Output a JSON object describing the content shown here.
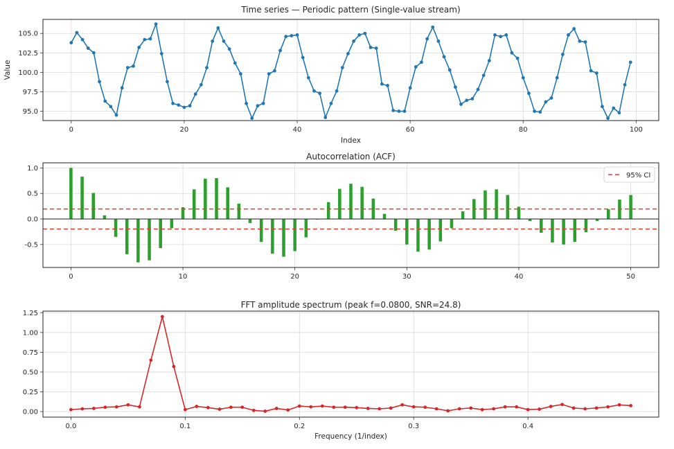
{
  "chart_data": [
    {
      "type": "line",
      "title": "Time series — Periodic pattern (Single-value stream)",
      "xlabel": "Index",
      "ylabel": "Value",
      "xlim": [
        -5,
        104
      ],
      "ylim": [
        93.8,
        106.8
      ],
      "xticks": [
        0,
        20,
        40,
        60,
        80,
        100
      ],
      "yticks": [
        95.0,
        97.5,
        100.0,
        102.5,
        105.0
      ],
      "ytick_labels": [
        "95.0",
        "97.5",
        "100.0",
        "102.5",
        "105.0"
      ],
      "grid": true,
      "color": "#1f77b4",
      "series": [
        {
          "values": [
            103.8,
            105.1,
            104.2,
            103.1,
            102.5,
            98.8,
            96.3,
            95.6,
            94.5,
            98.0,
            100.6,
            100.8,
            103.2,
            104.2,
            104.3,
            106.2,
            102.4,
            98.8,
            96.0,
            95.8,
            95.5,
            95.7,
            97.2,
            98.4,
            100.6,
            104.0,
            105.7,
            104.0,
            103.0,
            101.2,
            99.8,
            96.0,
            94.1,
            95.7,
            96.0,
            99.8,
            100.2,
            102.8,
            104.6,
            104.7,
            104.8,
            101.9,
            99.3,
            97.6,
            97.3,
            94.2,
            96.0,
            97.6,
            100.6,
            102.4,
            104.0,
            104.8,
            105.0,
            103.2,
            103.1,
            98.5,
            98.3,
            95.1,
            95.0,
            95.0,
            98.0,
            100.7,
            101.3,
            104.3,
            105.8,
            104.0,
            102.0,
            100.3,
            98.1,
            95.9,
            96.4,
            96.6,
            97.8,
            99.6,
            101.5,
            104.8,
            104.6,
            104.8,
            102.5,
            101.8,
            99.3,
            97.3,
            95.0,
            94.9,
            96.2,
            96.7,
            99.3,
            102.3,
            104.8,
            105.6,
            104.0,
            103.9,
            100.2,
            99.9,
            95.6,
            94.1,
            95.4,
            94.8,
            98.4,
            101.3
          ]
        }
      ]
    },
    {
      "type": "bar",
      "title": "Autocorrelation (ACF)",
      "xlim": [
        -2.5,
        52.5
      ],
      "ylim": [
        -0.95,
        1.1
      ],
      "xticks": [
        0,
        10,
        20,
        30,
        40,
        50
      ],
      "yticks": [
        -0.5,
        0.0,
        0.5,
        1.0
      ],
      "ytick_labels": [
        "-0.5",
        "0.0",
        "0.5",
        "1.0"
      ],
      "grid": true,
      "color": "#2ca02c",
      "ci": 0.196,
      "ci_color": "#e03c31",
      "legend": {
        "position": "top-right",
        "label": "95% CI"
      },
      "values": [
        1.0,
        0.83,
        0.51,
        0.07,
        -0.35,
        -0.69,
        -0.85,
        -0.81,
        -0.57,
        -0.18,
        0.23,
        0.58,
        0.79,
        0.8,
        0.62,
        0.3,
        -0.08,
        -0.45,
        -0.68,
        -0.74,
        -0.63,
        -0.36,
        -0.01,
        0.33,
        0.59,
        0.69,
        0.63,
        0.4,
        0.1,
        -0.23,
        -0.5,
        -0.64,
        -0.6,
        -0.44,
        -0.18,
        0.15,
        0.39,
        0.56,
        0.58,
        0.47,
        0.24,
        -0.04,
        -0.27,
        -0.46,
        -0.5,
        -0.45,
        -0.26,
        -0.04,
        0.19,
        0.38,
        0.47
      ]
    },
    {
      "type": "line",
      "title": "FFT amplitude spectrum (peak f=0.0800, SNR=24.8)",
      "xlabel": "Frequency (1/index)",
      "xlim": [
        -0.0245,
        0.5145
      ],
      "ylim": [
        -0.07,
        1.27
      ],
      "xticks": [
        0.0,
        0.1,
        0.2,
        0.3,
        0.4
      ],
      "xtick_labels": [
        "0.0",
        "0.1",
        "0.2",
        "0.3",
        "0.4"
      ],
      "yticks": [
        0.0,
        0.25,
        0.5,
        0.75,
        1.0,
        1.25
      ],
      "ytick_labels": [
        "0.00",
        "0.25",
        "0.50",
        "0.75",
        "1.00",
        "1.25"
      ],
      "grid": true,
      "color": "#d62728",
      "x_start": 0.0,
      "x_step": 0.01,
      "values": [
        0.025,
        0.035,
        0.04,
        0.055,
        0.06,
        0.085,
        0.06,
        0.65,
        1.2,
        0.57,
        0.025,
        0.065,
        0.05,
        0.03,
        0.055,
        0.055,
        0.015,
        0.005,
        0.04,
        0.02,
        0.07,
        0.06,
        0.07,
        0.055,
        0.055,
        0.05,
        0.04,
        0.035,
        0.045,
        0.085,
        0.06,
        0.055,
        0.035,
        0.01,
        0.035,
        0.045,
        0.025,
        0.035,
        0.06,
        0.06,
        0.025,
        0.03,
        0.065,
        0.09,
        0.045,
        0.035,
        0.045,
        0.06,
        0.085,
        0.075
      ]
    }
  ]
}
